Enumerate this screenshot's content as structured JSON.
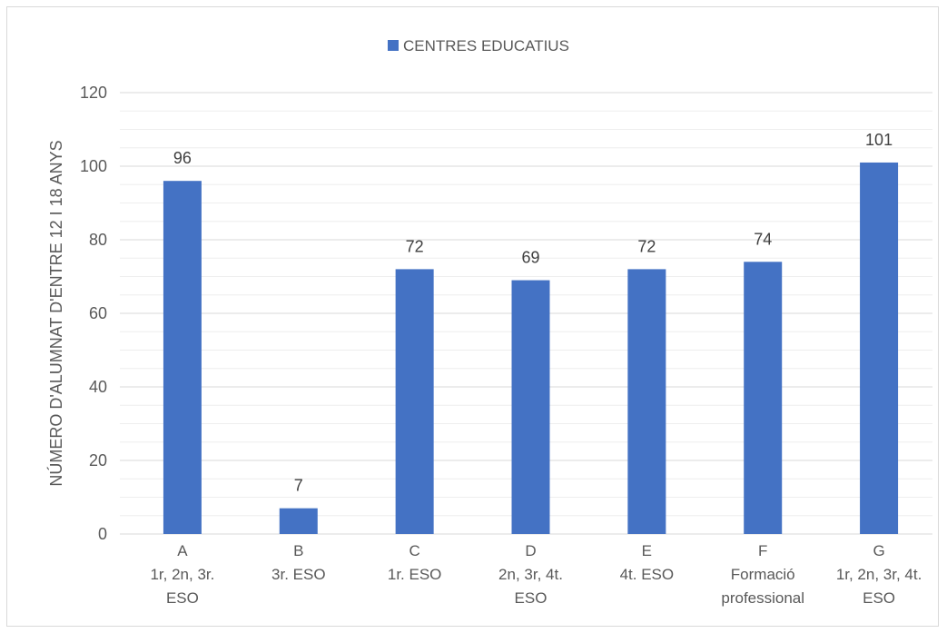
{
  "chart_data": {
    "type": "bar",
    "legend": "top",
    "series": [
      {
        "name": "CENTRES EDUCATIUS",
        "values": [
          96,
          7,
          72,
          69,
          72,
          74,
          101
        ]
      }
    ],
    "categories": [
      [
        "A",
        "1r, 2n, 3r.",
        "ESO"
      ],
      [
        "B",
        "3r. ESO"
      ],
      [
        "C",
        "1r. ESO"
      ],
      [
        "D",
        "2n, 3r, 4t.",
        "ESO"
      ],
      [
        "E",
        "4t. ESO"
      ],
      [
        "F",
        "Formació",
        "professional"
      ],
      [
        "G",
        "1r, 2n, 3r, 4t.",
        "ESO"
      ]
    ],
    "ylabel": "NÚMERO D'ALUMNAT D'ENTRE 12 I 18 ANYS",
    "xlabel": "",
    "ylim": [
      0,
      120
    ],
    "yticks": [
      0,
      20,
      40,
      60,
      80,
      100,
      120
    ],
    "grid": true,
    "colors": {
      "bar": "#4472c4",
      "grid_major": "#d9d9d9",
      "grid_minor": "#eeeeee"
    }
  }
}
